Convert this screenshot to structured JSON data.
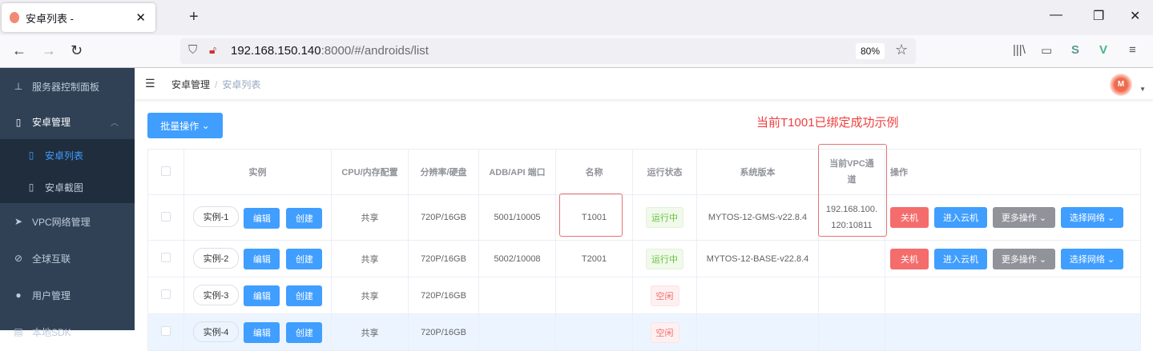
{
  "browser": {
    "tab_title": "安卓列表 -",
    "url_host": "192.168.150.140",
    "url_rest": ":8000/#/androids/list",
    "zoom": "80%"
  },
  "sidebar": {
    "items": [
      {
        "label": "服务器控制面板",
        "icon": "sitemap-icon"
      },
      {
        "label": "安卓管理",
        "icon": "phone-icon",
        "expanded": true,
        "children": [
          {
            "label": "安卓列表",
            "active": true
          },
          {
            "label": "安卓截图"
          }
        ]
      },
      {
        "label": "VPC网络管理",
        "icon": "send-icon"
      },
      {
        "label": "全球互联",
        "icon": "link-icon"
      },
      {
        "label": "用户管理",
        "icon": "user-icon"
      },
      {
        "label": "本地SDK",
        "icon": "document-icon"
      }
    ]
  },
  "breadcrumb": [
    "安卓管理",
    "安卓列表"
  ],
  "toolbar": {
    "batch_label": "批量操作"
  },
  "annotation": "当前T1001已绑定成功示例",
  "table": {
    "headers": [
      "实例",
      "CPU/内存配置",
      "分辨率/硬盘",
      "ADB/API 端口",
      "名称",
      "运行状态",
      "系统版本",
      "当前VPC通道",
      "操作"
    ],
    "edit_label": "编辑",
    "create_label": "创建",
    "action_labels": {
      "shutdown": "关机",
      "enter": "进入云机",
      "more": "更多操作",
      "network": "选择网络"
    },
    "rows": [
      {
        "instance": "实例-1",
        "cpu": "共享",
        "res": "720P/16GB",
        "port": "5001/10005",
        "name": "T1001",
        "status": "运行中",
        "os": "MYTOS-12-GMS-v22.8.4",
        "vpc": "192.168.100.120:10811"
      },
      {
        "instance": "实例-2",
        "cpu": "共享",
        "res": "720P/16GB",
        "port": "5002/10008",
        "name": "T2001",
        "status": "运行中",
        "os": "MYTOS-12-BASE-v22.8.4",
        "vpc": ""
      },
      {
        "instance": "实例-3",
        "cpu": "共享",
        "res": "720P/16GB",
        "port": "",
        "name": "",
        "status": "空闲",
        "os": "",
        "vpc": ""
      },
      {
        "instance": "实例-4",
        "cpu": "共享",
        "res": "720P/16GB",
        "port": "",
        "name": "",
        "status": "空闲",
        "os": "",
        "vpc": ""
      }
    ]
  },
  "colors": {
    "sidebar": "#304156",
    "primary": "#409eff",
    "danger": "#f56c6c",
    "annotation": "#f03c3c"
  }
}
